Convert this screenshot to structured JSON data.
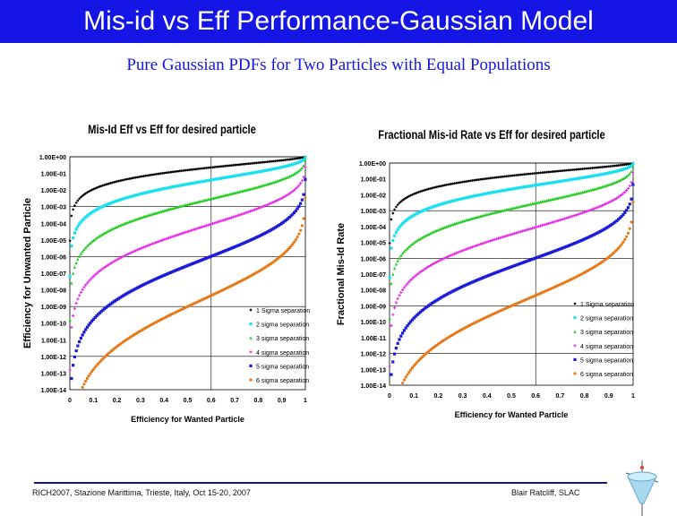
{
  "header": {
    "title": "Mis-id vs Eff Performance-Gaussian Model",
    "subtitle": "Pure Gaussian PDFs for Two  Particles with Equal Populations"
  },
  "footer": {
    "left": "RICH2007, Stazione Marittima, Trieste, Italy, Oct 15-20, 2007",
    "right": "Blair Ratcliff, SLAC"
  },
  "colors": {
    "title_bar": "#1515e6",
    "subtitle": "#1515e6"
  },
  "chart_data": [
    {
      "type": "scatter",
      "title": "Mis-Id Eff vs Eff for  desired particle",
      "xlabel": "Efficiency for Wanted Particle",
      "ylabel": "Efficiency for Unwanted Particle",
      "y_scale": "log",
      "xlim": [
        0,
        1
      ],
      "ylim": [
        1e-14,
        1
      ],
      "x_ticks": [
        "0",
        "0.1",
        "0.2",
        "0.3",
        "0.4",
        "0.5",
        "0.6",
        "0.7",
        "0.8",
        "0.9",
        "1"
      ],
      "y_ticks": [
        "1.00E+00",
        "1.00E-01",
        "1.00E-02",
        "1.00E-03",
        "1.00E-04",
        "1.00E-05",
        "1.00E-06",
        "1.00E-07",
        "1.00E-08",
        "1.00E-09",
        "1.00E-10",
        "1.00E-11",
        "1.00E-12",
        "1.00E-13",
        "1.00E-14"
      ],
      "grid": true,
      "legend_position": "bottom-right",
      "series": [
        {
          "name": "1 Sigma separation",
          "color": "#000000",
          "marker": "diamond",
          "sep": 1
        },
        {
          "name": "2 sigma separation",
          "color": "#1ae0f0",
          "marker": "square",
          "sep": 2
        },
        {
          "name": "3 sigma separation",
          "color": "#22cc22",
          "marker": "triangle",
          "sep": 3
        },
        {
          "name": "4 sigma separation",
          "color": "#e62ee6",
          "marker": "cross",
          "sep": 4
        },
        {
          "name": "5 sigma separation",
          "color": "#1a1ad9",
          "marker": "square",
          "sep": 5
        },
        {
          "name": "6 sigma separation",
          "color": "#e67a1a",
          "marker": "circle",
          "sep": 6
        }
      ]
    },
    {
      "type": "scatter",
      "title": "Fractional Mis-id Rate vs Eff for desired particle",
      "xlabel": "Efficiency for Wanted Particle",
      "ylabel": "Fractional Mis-Id Rate",
      "y_scale": "log",
      "xlim": [
        0,
        1
      ],
      "ylim": [
        1e-14,
        1
      ],
      "x_ticks": [
        "0",
        "0.1",
        "0.2",
        "0.3",
        "0.4",
        "0.5",
        "0.6",
        "0.7",
        "0.8",
        "0.9",
        "1"
      ],
      "y_ticks": [
        "1.00E+00",
        "1.00E-01",
        "1.00E-02",
        "1.00E-03",
        "1.00E-04",
        "1.00E-05",
        "1.00E-06",
        "1.00E-07",
        "1.00E-08",
        "1.00E-09",
        "1.00E-10",
        "1.00E-11",
        "1.00E-12",
        "1.00E-13",
        "1.00E-14"
      ],
      "grid": true,
      "legend_position": "bottom-right",
      "series": [
        {
          "name": "1 Sigma separation",
          "color": "#000000",
          "marker": "diamond",
          "sep": 1
        },
        {
          "name": "2 sigma separation",
          "color": "#1ae0f0",
          "marker": "square",
          "sep": 2
        },
        {
          "name": "3 sigma separation",
          "color": "#22cc22",
          "marker": "triangle",
          "sep": 3
        },
        {
          "name": "4 sigma separation",
          "color": "#e62ee6",
          "marker": "cross",
          "sep": 4
        },
        {
          "name": "5 sigma separation",
          "color": "#1a1ad9",
          "marker": "square",
          "sep": 5
        },
        {
          "name": "6 sigma separation",
          "color": "#e67a1a",
          "marker": "circle",
          "sep": 6
        }
      ]
    }
  ]
}
